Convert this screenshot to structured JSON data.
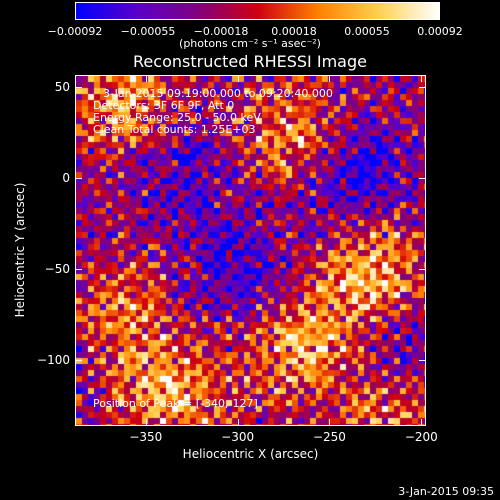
{
  "chart_data": {
    "type": "heatmap",
    "title": "Reconstructed RHESSI Image",
    "xlabel": "Heliocentric X (arcsec)",
    "ylabel": "Heliocentric Y (arcsec)",
    "xlim": [
      -388,
      -198
    ],
    "ylim": [
      -136,
      56
    ],
    "x_ticks": [
      -350,
      -300,
      -250,
      -200
    ],
    "x_tick_labels": [
      "−350",
      "−300",
      "−250",
      "−200"
    ],
    "y_ticks": [
      50,
      0,
      -50,
      -100
    ],
    "y_tick_labels": [
      "50",
      "0",
      "−50",
      "−100"
    ],
    "colorbar": {
      "min": -0.00092,
      "max": 0.00092,
      "tick_labels": [
        "−0.00092",
        "−0.00055",
        "−0.00018",
        "0.00018",
        "0.00055",
        "0.00092"
      ],
      "units": "(photons cm⁻² s⁻¹ asec⁻²)",
      "colors": [
        "#0000ff",
        "#5a00c8",
        "#800080",
        "#d00010",
        "#ff8000",
        "#ffd050",
        "#ffffff"
      ]
    },
    "annotations": {
      "time_range": "3-Jan-2015 09:19:00.000 to 09:20:40.000",
      "detectors": "Detectors: 3F 6F 9F, Att 0",
      "energy_range": "Energy Range: 25.0 - 50.0 keV",
      "method": "Clean     Total counts: 1.25E+03",
      "peak": "Position of Peak = [-340,-127]"
    },
    "bright_regions": [
      {
        "x": -228,
        "y": -55,
        "intensity": 1.0
      },
      {
        "x": -268,
        "y": 22,
        "intensity": 0.9
      },
      {
        "x": -338,
        "y": -118,
        "intensity": 0.95
      },
      {
        "x": -265,
        "y": -95,
        "intensity": 0.85
      },
      {
        "x": -360,
        "y": 40,
        "intensity": 0.8
      },
      {
        "x": -362,
        "y": -70,
        "intensity": 0.6
      },
      {
        "x": -215,
        "y": -125,
        "intensity": 0.7
      }
    ],
    "dark_regions": [
      {
        "x": -240,
        "y": 5,
        "intensity": -0.8
      },
      {
        "x": -300,
        "y": -50,
        "intensity": -0.6
      },
      {
        "x": -330,
        "y": 5,
        "intensity": -0.5
      },
      {
        "x": -210,
        "y": -95,
        "intensity": -0.6
      }
    ]
  },
  "footer": {
    "timestamp": "3-Jan-2015 09:35"
  }
}
